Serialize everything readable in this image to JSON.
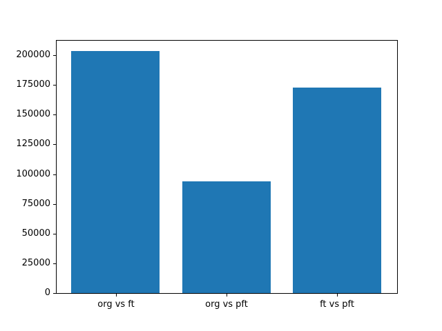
{
  "chart_data": {
    "type": "bar",
    "title": "",
    "xlabel": "",
    "ylabel": "",
    "categories": [
      "org vs ft",
      "org vs pft",
      "ft vs pft"
    ],
    "values": [
      203500,
      94200,
      172700
    ],
    "ylim": [
      0,
      212800
    ],
    "yticks": [
      0,
      25000,
      50000,
      75000,
      100000,
      125000,
      150000,
      175000,
      200000
    ],
    "ytick_labels": [
      "0",
      "25000",
      "50000",
      "75000",
      "100000",
      "125000",
      "150000",
      "175000",
      "200000"
    ],
    "bar_color": "#1f77b4",
    "axis_color": "#000000",
    "background_color": "#ffffff",
    "grid": false,
    "legend_position": "none"
  }
}
